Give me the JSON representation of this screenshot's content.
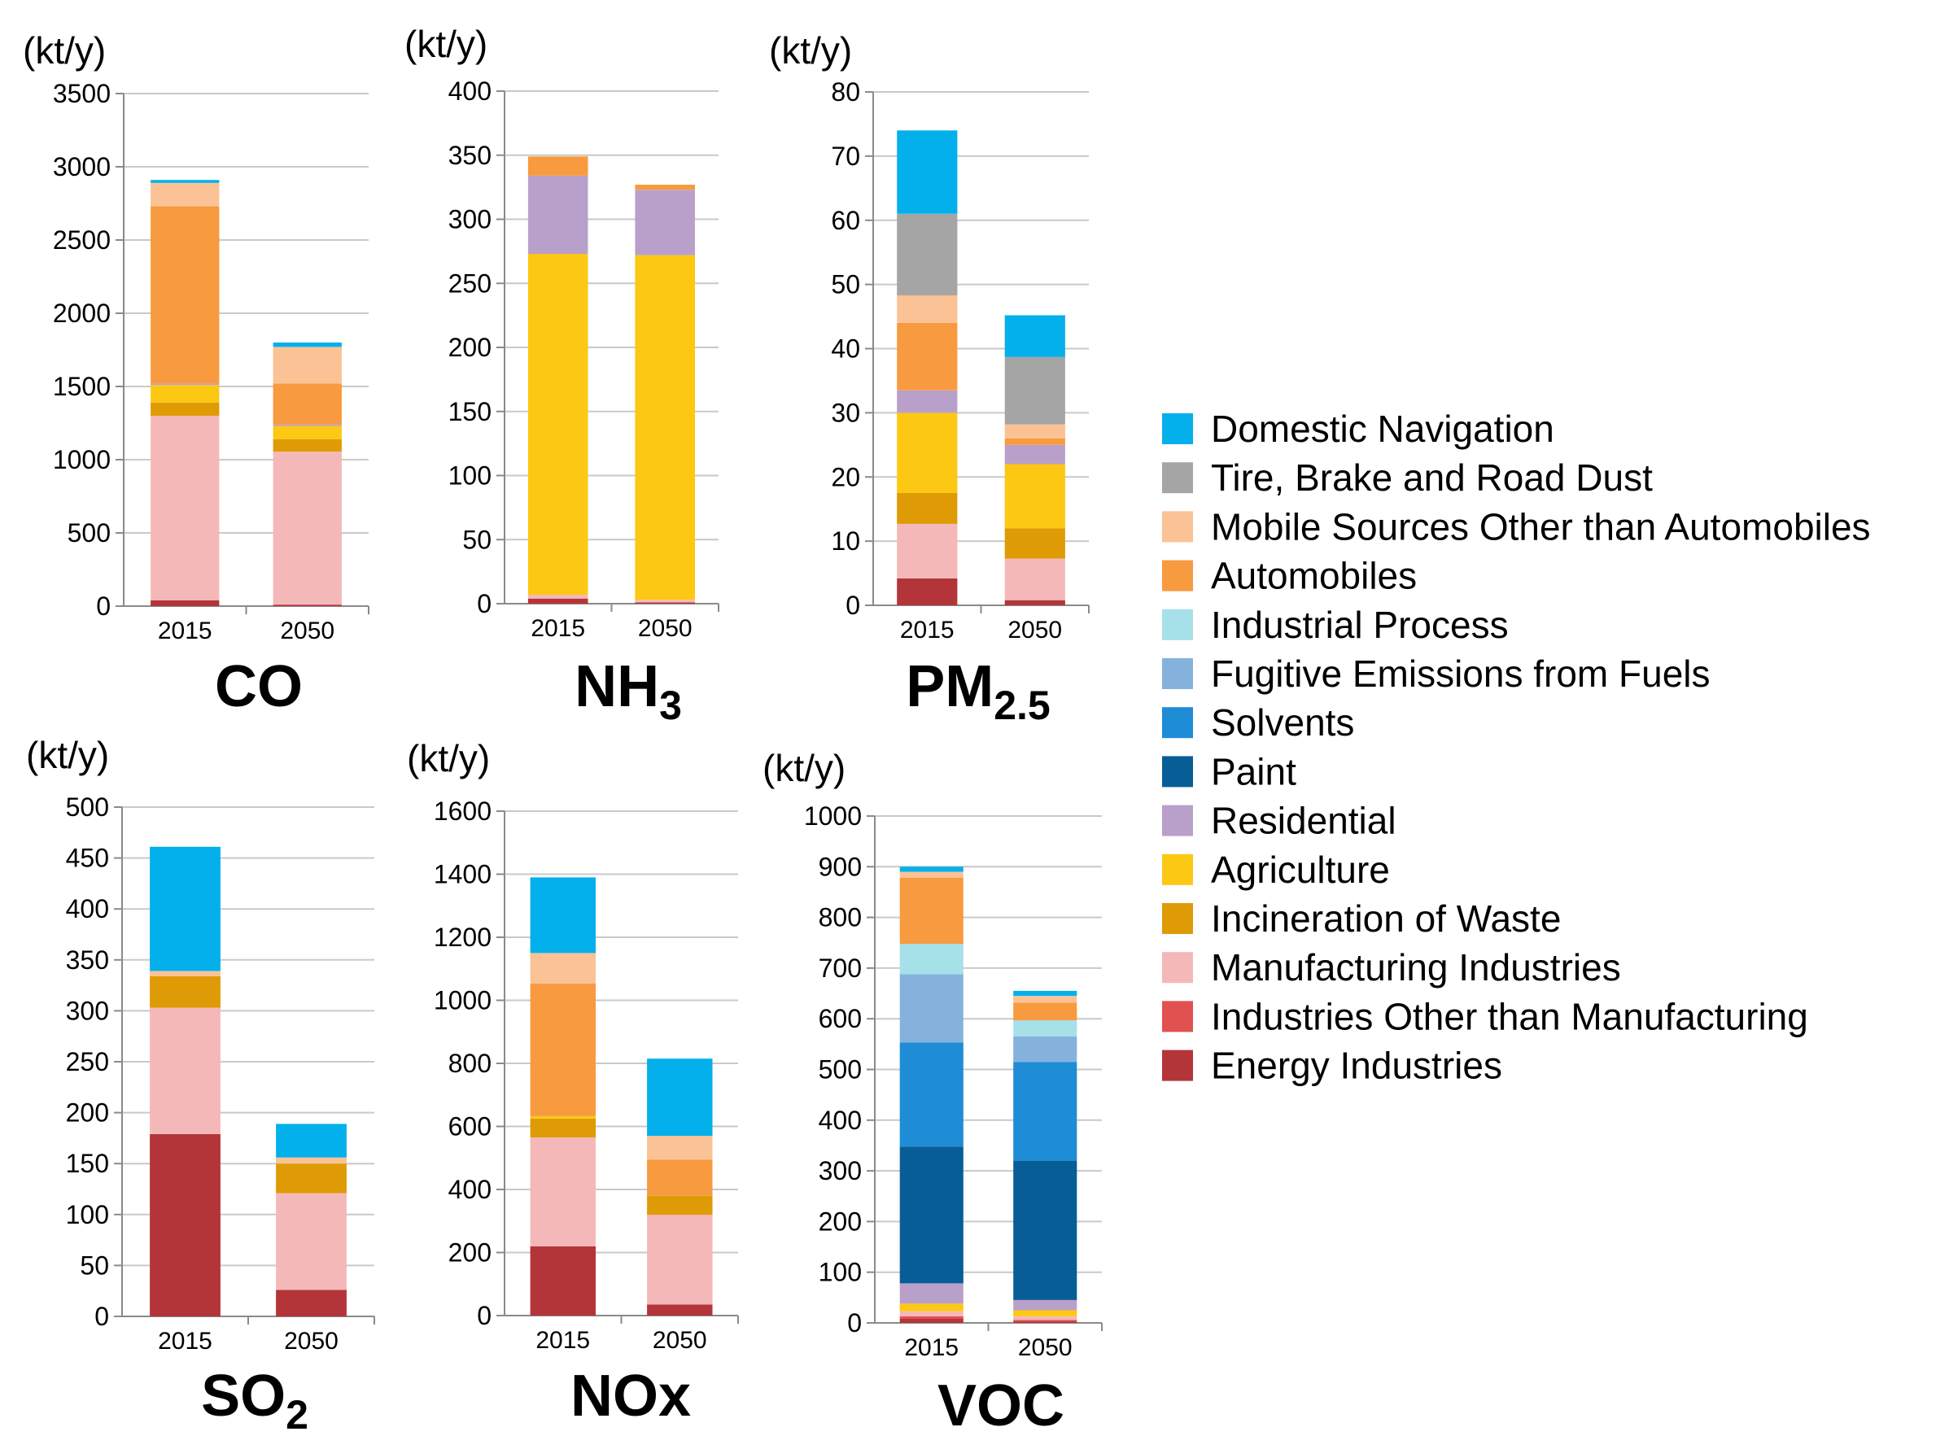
{
  "unit_label": "(kt/y)",
  "categories": [
    "2015",
    "2050"
  ],
  "sectors": [
    {
      "key": "energy",
      "name": "Energy Industries",
      "color": "#b3353a",
      "icon": "square-swatch"
    },
    {
      "key": "ind_other",
      "name": "Industries Other than Manufacturing",
      "color": "#e1514f",
      "icon": "square-swatch"
    },
    {
      "key": "manufacturing",
      "name": "Manufacturing Industries",
      "color": "#f5b8b8",
      "icon": "square-swatch"
    },
    {
      "key": "incineration",
      "name": "Incineration of Waste",
      "color": "#df9b05",
      "icon": "square-swatch"
    },
    {
      "key": "agriculture",
      "name": "Agriculture",
      "color": "#fcc813",
      "icon": "square-swatch"
    },
    {
      "key": "residential",
      "name": "Residential",
      "color": "#b9a0cb",
      "icon": "square-swatch"
    },
    {
      "key": "paint",
      "name": "Paint",
      "color": "#075e96",
      "icon": "square-swatch"
    },
    {
      "key": "solvents",
      "name": "Solvents",
      "color": "#1f8cd6",
      "icon": "square-swatch"
    },
    {
      "key": "fugitive",
      "name": "Fugitive Emissions from Fuels",
      "color": "#85b2dd",
      "icon": "square-swatch"
    },
    {
      "key": "ind_process",
      "name": "Industrial Process",
      "color": "#a6e0e8",
      "icon": "square-swatch"
    },
    {
      "key": "automobiles",
      "name": "Automobiles",
      "color": "#f89a3f",
      "icon": "square-swatch"
    },
    {
      "key": "mobile_other",
      "name": "Mobile Sources Other than Automobiles",
      "color": "#fbc295",
      "icon": "square-swatch"
    },
    {
      "key": "tire",
      "name": "Tire, Brake and Road Dust",
      "color": "#a5a5a5",
      "icon": "square-swatch"
    },
    {
      "key": "navigation",
      "name": "Domestic Navigation",
      "color": "#04b0eb",
      "icon": "square-swatch"
    }
  ],
  "chart_data": [
    {
      "type": "bar",
      "stacked": true,
      "title": "CO",
      "title_sub": "",
      "ylabel": "(kt/y)",
      "categories": [
        "2015",
        "2050"
      ],
      "ylim": [
        0,
        3500
      ],
      "yticks": [
        0,
        500,
        1000,
        1500,
        2000,
        2500,
        3000,
        3500
      ],
      "series": [
        {
          "name": "Energy Industries",
          "values": [
            40,
            10
          ]
        },
        {
          "name": "Manufacturing Industries",
          "values": [
            1260,
            1045
          ]
        },
        {
          "name": "Incineration of Waste",
          "values": [
            90,
            85
          ]
        },
        {
          "name": "Agriculture",
          "values": [
            120,
            90
          ]
        },
        {
          "name": "Residential",
          "values": [
            10,
            10
          ]
        },
        {
          "name": "Automobiles",
          "values": [
            1210,
            280
          ]
        },
        {
          "name": "Mobile Sources Other than Automobiles",
          "values": [
            160,
            250
          ]
        },
        {
          "name": "Domestic Navigation",
          "values": [
            20,
            30
          ]
        }
      ]
    },
    {
      "type": "bar",
      "stacked": true,
      "title": "NH",
      "title_sub": "3",
      "ylabel": "(kt/y)",
      "categories": [
        "2015",
        "2050"
      ],
      "ylim": [
        0,
        400
      ],
      "yticks": [
        0,
        50,
        100,
        150,
        200,
        250,
        300,
        350,
        400
      ],
      "series": [
        {
          "name": "Energy Industries",
          "values": [
            4,
            1
          ]
        },
        {
          "name": "Manufacturing Industries",
          "values": [
            3,
            2
          ]
        },
        {
          "name": "Agriculture",
          "values": [
            266,
            269
          ]
        },
        {
          "name": "Residential",
          "values": [
            61,
            51
          ]
        },
        {
          "name": "Automobiles",
          "values": [
            15,
            4
          ]
        }
      ]
    },
    {
      "type": "bar",
      "stacked": true,
      "title": "PM",
      "title_sub": "2.5",
      "ylabel": "(kt/y)",
      "categories": [
        "2015",
        "2050"
      ],
      "ylim": [
        0,
        80
      ],
      "yticks": [
        0,
        10,
        20,
        30,
        40,
        50,
        60,
        70,
        80
      ],
      "series": [
        {
          "name": "Energy Industries",
          "values": [
            4.2,
            0.8
          ]
        },
        {
          "name": "Manufacturing Industries",
          "values": [
            8.5,
            6.5
          ]
        },
        {
          "name": "Incineration of Waste",
          "values": [
            4.8,
            4.7
          ]
        },
        {
          "name": "Agriculture",
          "values": [
            12.5,
            10.0
          ]
        },
        {
          "name": "Residential",
          "values": [
            3.5,
            3.0
          ]
        },
        {
          "name": "Automobiles",
          "values": [
            10.5,
            1.0
          ]
        },
        {
          "name": "Mobile Sources Other than Automobiles",
          "values": [
            4.3,
            2.2
          ]
        },
        {
          "name": "Tire, Brake and Road Dust",
          "values": [
            12.7,
            10.5
          ]
        },
        {
          "name": "Domestic Navigation",
          "values": [
            13.0,
            6.5
          ]
        }
      ]
    },
    {
      "type": "bar",
      "stacked": true,
      "title": "SO",
      "title_sub": "2",
      "ylabel": "(kt/y)",
      "categories": [
        "2015",
        "2050"
      ],
      "ylim": [
        0,
        500
      ],
      "yticks": [
        0,
        50,
        100,
        150,
        200,
        250,
        300,
        350,
        400,
        450,
        500
      ],
      "series": [
        {
          "name": "Energy Industries",
          "values": [
            179,
            26
          ]
        },
        {
          "name": "Manufacturing Industries",
          "values": [
            124,
            95
          ]
        },
        {
          "name": "Incineration of Waste",
          "values": [
            31,
            29
          ]
        },
        {
          "name": "Mobile Sources Other than Automobiles",
          "values": [
            5,
            6
          ]
        },
        {
          "name": "Domestic Navigation",
          "values": [
            122,
            33
          ]
        }
      ]
    },
    {
      "type": "bar",
      "stacked": true,
      "title": "NOx",
      "title_sub": "",
      "ylabel": "(kt/y)",
      "categories": [
        "2015",
        "2050"
      ],
      "ylim": [
        0,
        1600
      ],
      "yticks": [
        0,
        200,
        400,
        600,
        800,
        1000,
        1200,
        1400,
        1600
      ],
      "series": [
        {
          "name": "Energy Industries",
          "values": [
            220,
            35
          ]
        },
        {
          "name": "Manufacturing Industries",
          "values": [
            345,
            285
          ]
        },
        {
          "name": "Incineration of Waste",
          "values": [
            60,
            60
          ]
        },
        {
          "name": "Agriculture",
          "values": [
            8,
            0
          ]
        },
        {
          "name": "Automobiles",
          "values": [
            420,
            115
          ]
        },
        {
          "name": "Mobile Sources Other than Automobiles",
          "values": [
            97,
            75
          ]
        },
        {
          "name": "Domestic Navigation",
          "values": [
            240,
            245
          ]
        }
      ]
    },
    {
      "type": "bar",
      "stacked": true,
      "title": "VOC",
      "title_sub": "",
      "ylabel": "(kt/y)",
      "categories": [
        "2015",
        "2050"
      ],
      "ylim": [
        0,
        1000
      ],
      "yticks": [
        0,
        100,
        200,
        300,
        400,
        500,
        600,
        700,
        800,
        900,
        1000
      ],
      "series": [
        {
          "name": "Energy Industries",
          "values": [
            8,
            3
          ]
        },
        {
          "name": "Industries Other than Manufacturing",
          "values": [
            5,
            3
          ]
        },
        {
          "name": "Manufacturing Industries",
          "values": [
            10,
            7
          ]
        },
        {
          "name": "Agriculture",
          "values": [
            15,
            12
          ]
        },
        {
          "name": "Residential",
          "values": [
            40,
            20
          ]
        },
        {
          "name": "Paint",
          "values": [
            270,
            275
          ]
        },
        {
          "name": "Solvents",
          "values": [
            205,
            195
          ]
        },
        {
          "name": "Fugitive Emissions from Fuels",
          "values": [
            135,
            50
          ]
        },
        {
          "name": "Industrial Process",
          "values": [
            60,
            32
          ]
        },
        {
          "name": "Automobiles",
          "values": [
            130,
            35
          ]
        },
        {
          "name": "Mobile Sources Other than Automobiles",
          "values": [
            12,
            13
          ]
        },
        {
          "name": "Domestic Navigation",
          "values": [
            10,
            10
          ]
        }
      ]
    }
  ],
  "legend": {
    "placement": "right",
    "order": [
      "Domestic Navigation",
      "Tire, Brake and Road Dust",
      "Mobile Sources Other than Automobiles",
      "Automobiles",
      "Industrial Process",
      "Fugitive Emissions from Fuels",
      "Solvents",
      "Paint",
      "Residential",
      "Agriculture",
      "Incineration of Waste",
      "Manufacturing Industries",
      "Industries Other than Manufacturing",
      "Energy Industries"
    ]
  }
}
